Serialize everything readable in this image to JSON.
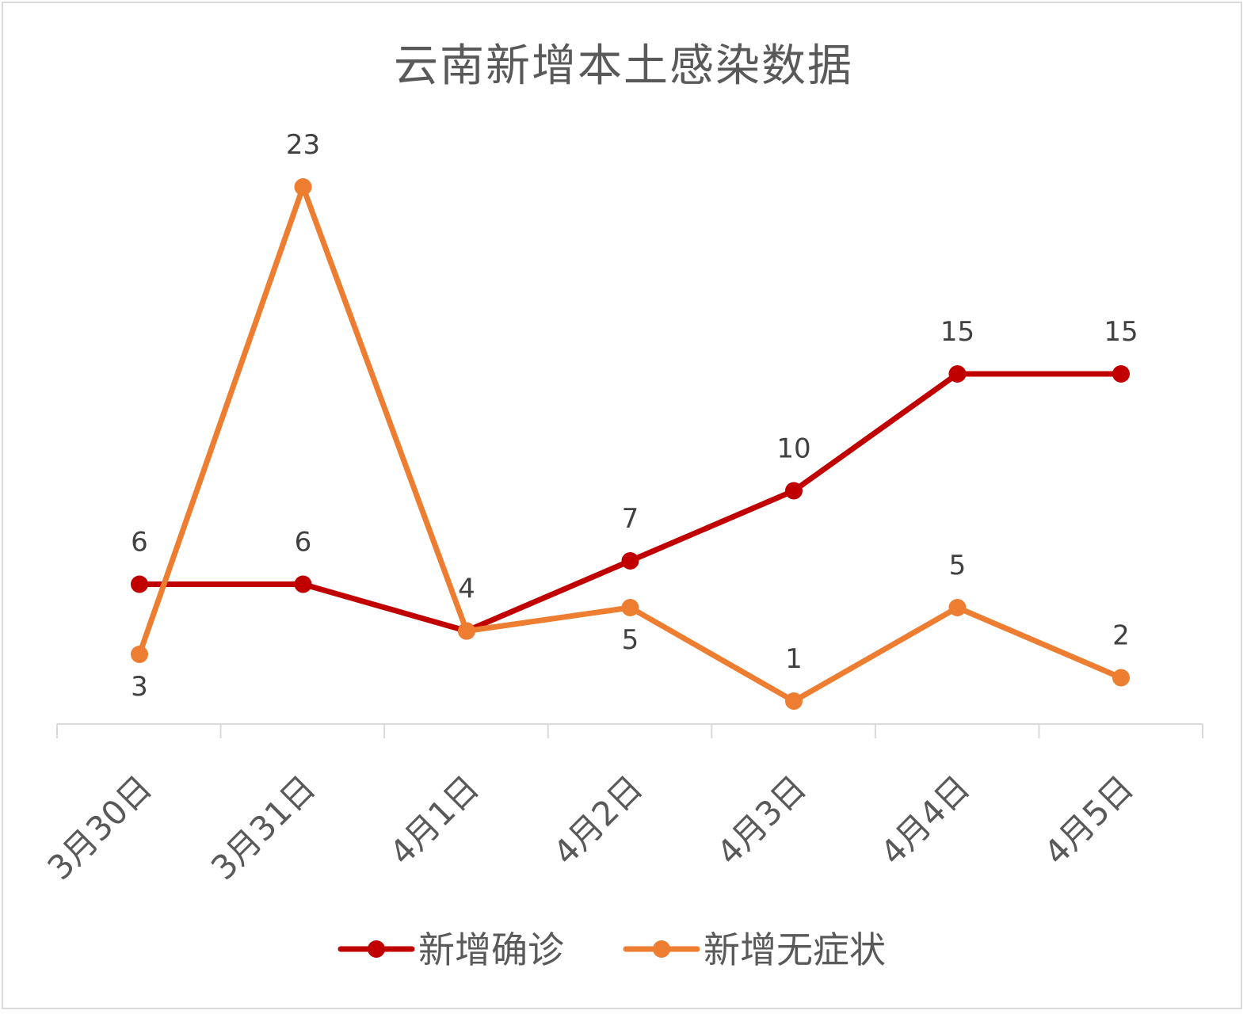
{
  "chart_data": {
    "type": "line",
    "title": "云南新增本土感染数据",
    "categories": [
      "3月30日",
      "3月31日",
      "4月1日",
      "4月2日",
      "4月3日",
      "4月4日",
      "4月5日"
    ],
    "series": [
      {
        "name": "新增确诊",
        "values": [
          6,
          6,
          4,
          7,
          10,
          15,
          15
        ],
        "color": "#c00000",
        "label_pos": [
          "above",
          "above",
          "above",
          "above",
          "above",
          "above",
          "above"
        ]
      },
      {
        "name": "新增无症状",
        "values": [
          3,
          23,
          4,
          5,
          1,
          5,
          2
        ],
        "color": "#ed7d31",
        "label_pos": [
          "below",
          "above",
          "none",
          "below",
          "above",
          "above",
          "above"
        ]
      }
    ],
    "ylim": [
      0,
      24
    ],
    "grid": false,
    "legend": "bottom",
    "xlabel": "",
    "ylabel": ""
  }
}
